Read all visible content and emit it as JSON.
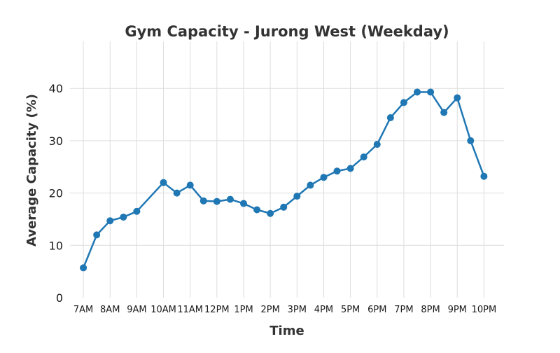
{
  "chart_data": {
    "type": "line",
    "title": "Gym Capacity - Jurong West (Weekday)",
    "xlabel": "Time",
    "ylabel": "Average Capacity (%)",
    "ylim": [
      0,
      49
    ],
    "yticks": [
      0,
      10,
      20,
      30,
      40
    ],
    "xlim": [
      6.5,
      22.75
    ],
    "xticks": [
      {
        "hour": 7,
        "label": "7AM"
      },
      {
        "hour": 8,
        "label": "8AM"
      },
      {
        "hour": 9,
        "label": "9AM"
      },
      {
        "hour": 10,
        "label": "10AM"
      },
      {
        "hour": 11,
        "label": "11AM"
      },
      {
        "hour": 12,
        "label": "12PM"
      },
      {
        "hour": 13,
        "label": "1PM"
      },
      {
        "hour": 14,
        "label": "2PM"
      },
      {
        "hour": 15,
        "label": "3PM"
      },
      {
        "hour": 16,
        "label": "4PM"
      },
      {
        "hour": 17,
        "label": "5PM"
      },
      {
        "hour": 18,
        "label": "6PM"
      },
      {
        "hour": 19,
        "label": "7PM"
      },
      {
        "hour": 20,
        "label": "8PM"
      },
      {
        "hour": 21,
        "label": "9PM"
      },
      {
        "hour": 22,
        "label": "10PM"
      }
    ],
    "grid": true,
    "line_color": "#1f77b4",
    "series": [
      {
        "x": [
          7.0,
          7.5,
          8.0,
          8.5,
          9.0,
          10.0,
          10.5,
          11.0,
          11.5,
          12.0,
          12.5,
          13.0,
          13.5,
          14.0,
          14.5,
          15.0,
          15.5,
          16.0,
          16.5,
          17.0,
          17.5,
          18.0,
          18.5,
          19.0,
          19.5,
          20.0,
          20.5,
          21.0,
          21.5,
          22.0
        ],
        "y": [
          5.7,
          12.0,
          14.7,
          15.4,
          16.5,
          22.0,
          20.0,
          21.5,
          18.5,
          18.4,
          18.8,
          18.0,
          16.8,
          16.1,
          17.3,
          19.4,
          21.5,
          23.0,
          24.2,
          24.7,
          26.9,
          29.3,
          34.4,
          37.3,
          39.3,
          39.3,
          35.4,
          38.2,
          30.0,
          23.2
        ]
      }
    ]
  }
}
